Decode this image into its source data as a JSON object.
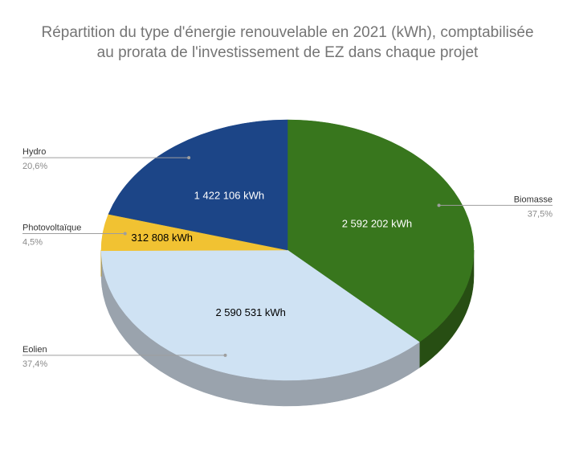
{
  "chart_data": {
    "type": "pie",
    "title_lines": [
      "Répartition du type d'énergie renouvelable en 2021 (kWh), comptabilisée",
      "au prorata de l'investissement de EZ dans chaque projet"
    ],
    "unit": "kWh",
    "slices": [
      {
        "name": "Biomasse",
        "value": 2592202,
        "value_label": "2 592 202 kWh",
        "percent_label": "37,5%",
        "color": "#38761d",
        "side_color": "#274e13",
        "text_color": "#ffffff"
      },
      {
        "name": "Eolien",
        "value": 2590531,
        "value_label": "2 590 531 kWh",
        "percent_label": "37,4%",
        "color": "#cfe2f3",
        "side_color": "#9aa3ad",
        "text_color": "#000000"
      },
      {
        "name": "Photovoltaïque",
        "value": 312808,
        "value_label": "312 808 kWh",
        "percent_label": "4,5%",
        "color": "#f1c232",
        "side_color": "#bf9000",
        "text_color": "#000000"
      },
      {
        "name": "Hydro",
        "value": 1422106,
        "value_label": "1 422 106 kWh",
        "percent_label": "20,6%",
        "color": "#1c4587",
        "side_color": "#102a54",
        "text_color": "#ffffff"
      }
    ],
    "legend_placement": "callouts beside slices",
    "three_d": true
  }
}
